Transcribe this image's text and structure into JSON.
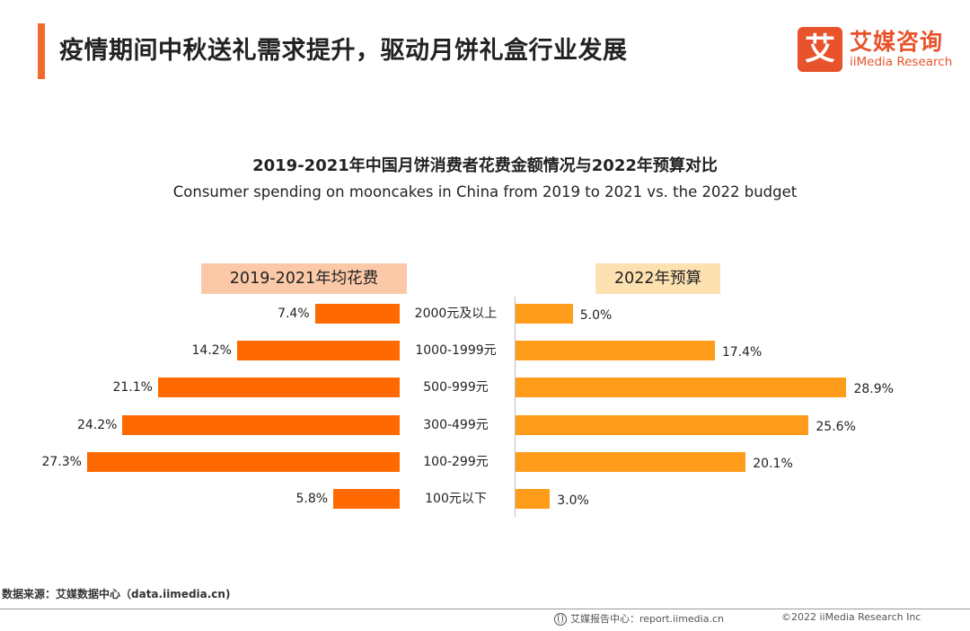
{
  "header": {
    "title": "疫情期间中秋送礼需求提升，驱动月饼礼盒行业发展",
    "accent_color": "#f26a2e"
  },
  "logo": {
    "mark": "艾",
    "name_cn": "艾媒咨询",
    "name_en": "iiMedia Research",
    "color": "#e8532b"
  },
  "chart_data": {
    "type": "bar",
    "orientation": "horizontal-butterfly",
    "title": "2019-2021年中国月饼消费者花费金额情况与2022年预算对比",
    "subtitle": "Consumer spending on mooncakes in China from 2019 to 2021 vs. the 2022 budget",
    "categories": [
      "2000元及以上",
      "1000-1999元",
      "500-999元",
      "300-499元",
      "100-299元",
      "100元以下"
    ],
    "unit": "%",
    "xlim": [
      0,
      30
    ],
    "series": [
      {
        "name": "2019-2021年均花费",
        "side": "left",
        "color": "#ff6a00",
        "label_bg": "#fbc9a8",
        "values": [
          7.4,
          14.2,
          21.1,
          24.2,
          27.3,
          5.8
        ],
        "labels": [
          "7.4%",
          "14.2%",
          "21.1%",
          "24.2%",
          "27.3%",
          "5.8%"
        ]
      },
      {
        "name": "2022年预算",
        "side": "right",
        "color": "#ff9c1a",
        "label_bg": "#fde1b0",
        "values": [
          5.0,
          17.4,
          28.9,
          25.6,
          20.1,
          3.0
        ],
        "labels": [
          "5.0%",
          "17.4%",
          "28.9%",
          "25.6%",
          "20.1%",
          "3.0%"
        ]
      }
    ]
  },
  "footer": {
    "source": "数据来源：艾媒数据中心（data.iimedia.cn)",
    "report": "艾媒报告中心：report.iimedia.cn",
    "copyright": "©2022 iiMedia Research Inc"
  }
}
